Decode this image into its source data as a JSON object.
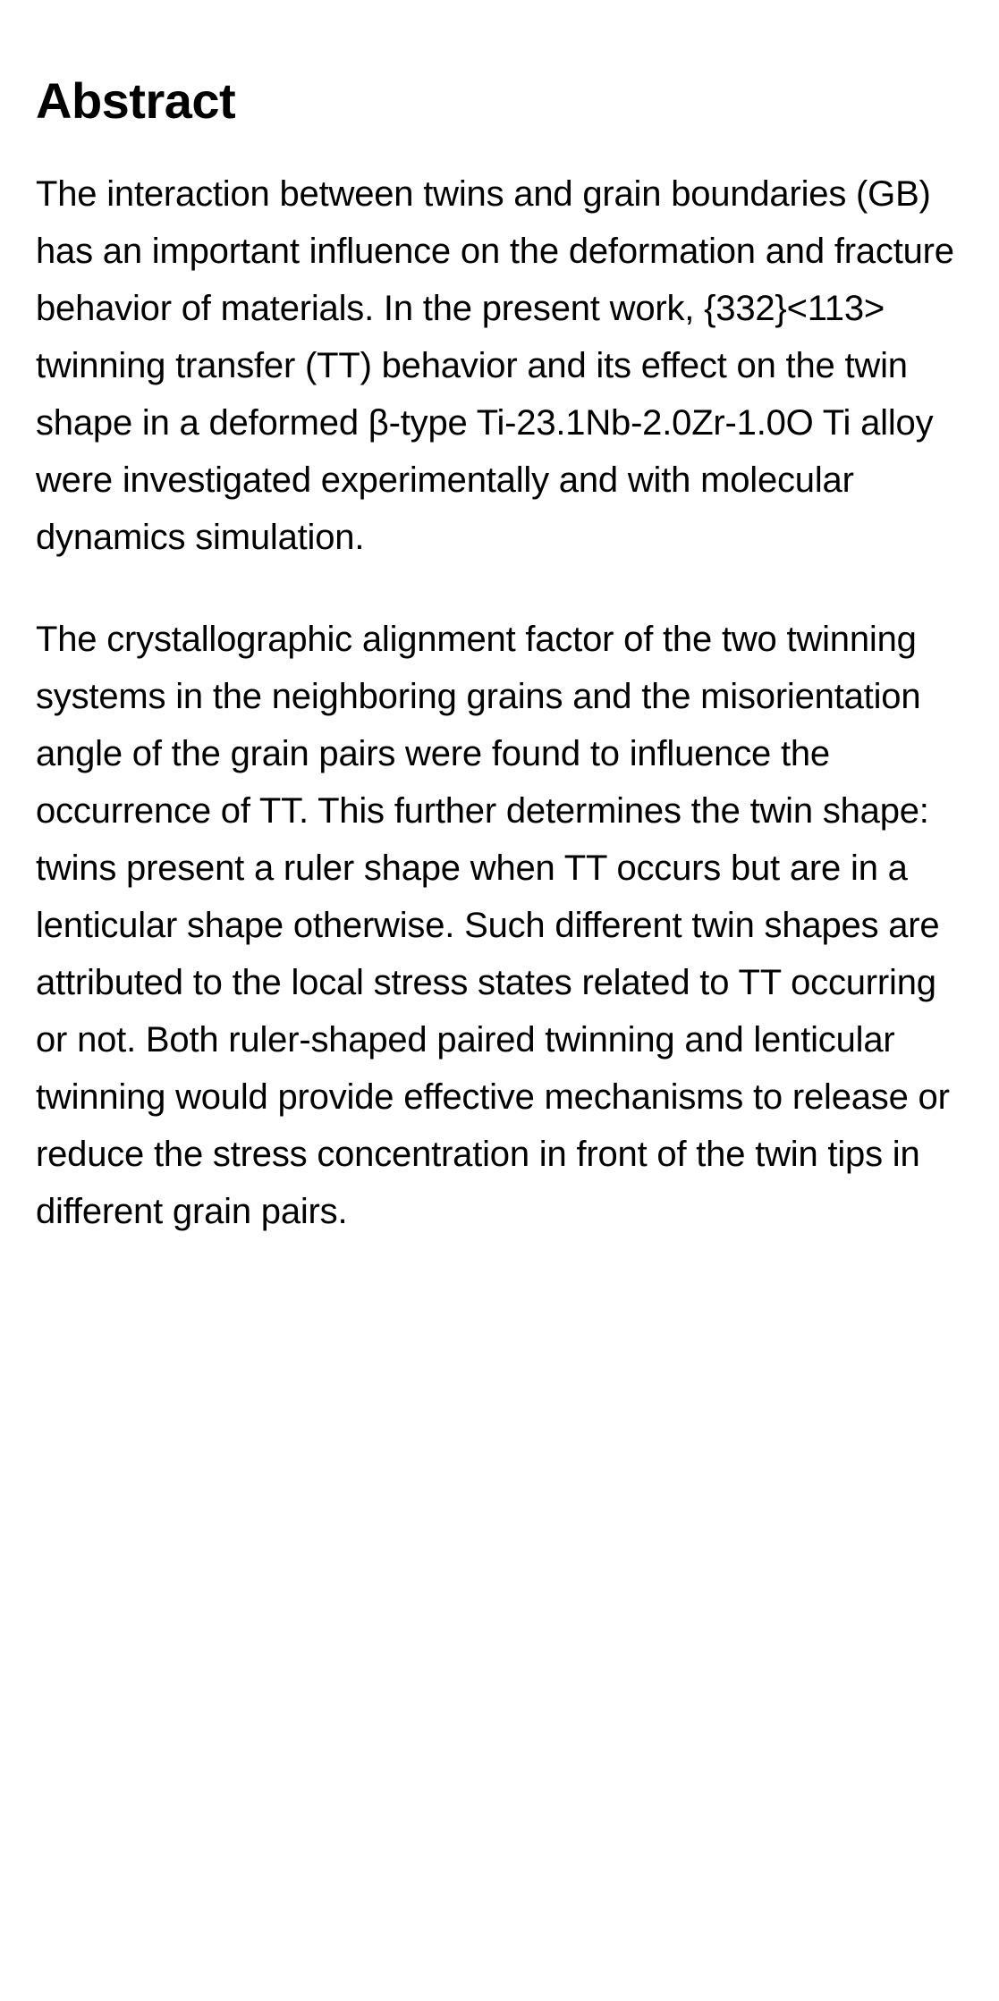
{
  "abstract": {
    "heading": "Abstract",
    "paragraph1": "The interaction between twins and grain boundaries (GB) has an important influence on the deformation and fracture behavior of materials. In the present work, {332}<113> twinning transfer (TT) behavior and its effect on the twin shape in a deformed β-type Ti-23.1Nb-2.0Zr-1.0O Ti alloy were investigated experimentally and with molecular dynamics simulation.",
    "paragraph2": "The crystallographic alignment factor of the two twinning systems in the neighboring grains and the misorientation angle of the grain pairs were found to influence the occurrence of TT. This further determines the twin shape: twins present a ruler shape when TT occurs but are in a lenticular shape otherwise. Such different twin shapes are attributed to the local stress states related to TT occurring or not. Both ruler-shaped paired twinning and lenticular twinning would provide effective mechanisms to release or reduce the stress concentration in front of the twin tips in different grain pairs."
  },
  "styling": {
    "background_color": "#ffffff",
    "text_color": "#000000",
    "heading_fontsize": 56,
    "heading_fontweight": 700,
    "body_fontsize": 40,
    "body_fontweight": 400,
    "body_lineheight": 1.6
  }
}
